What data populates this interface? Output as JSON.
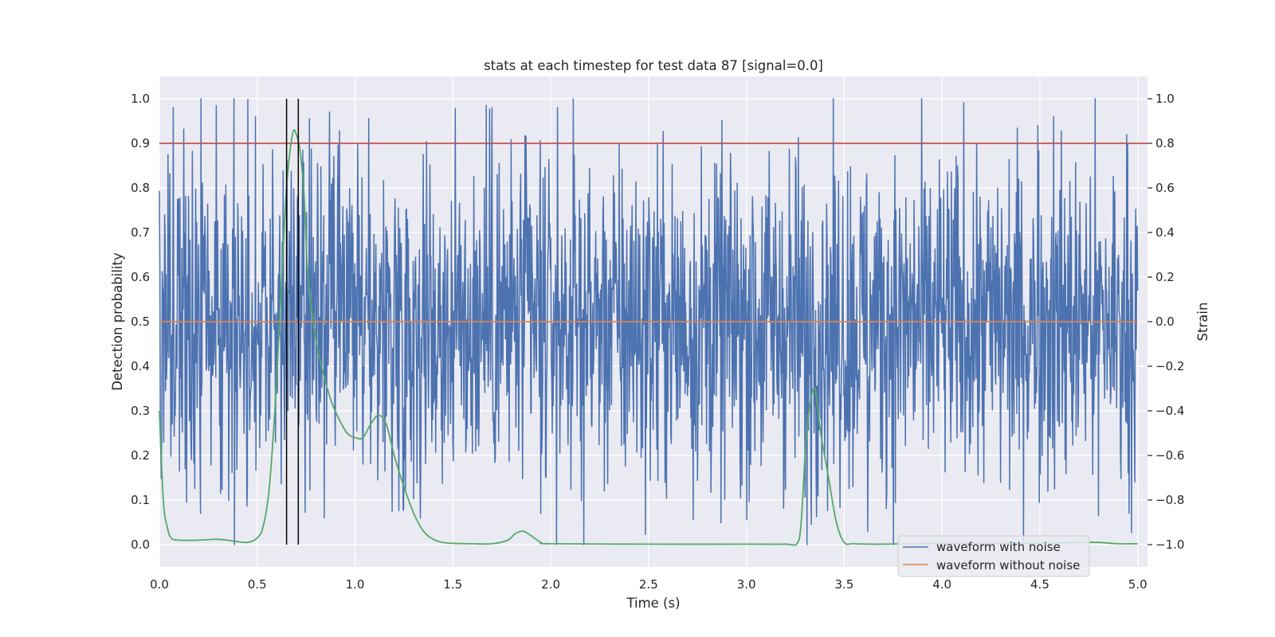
{
  "chart_data": {
    "type": "line",
    "title": "stats at each timestep for test data 87 [signal=0.0]",
    "xlabel": "Time (s)",
    "ylabel_left": "Detection probability",
    "ylabel_right": "Strain",
    "xlim": [
      0.0,
      5.05
    ],
    "ylim_left": [
      -0.05,
      1.05
    ],
    "ylim_right": [
      -1.1,
      1.1
    ],
    "x_ticks": [
      "0.0",
      "0.5",
      "1.0",
      "1.5",
      "2.0",
      "2.5",
      "3.0",
      "3.5",
      "4.0",
      "4.5",
      "5.0"
    ],
    "y_left_ticks": [
      "0.0",
      "0.1",
      "0.2",
      "0.3",
      "0.4",
      "0.5",
      "0.6",
      "0.7",
      "0.8",
      "0.9",
      "1.0"
    ],
    "y_right_ticks": [
      "−1.0",
      "−0.8",
      "−0.6",
      "−0.4",
      "−0.2",
      "0.0",
      "0.2",
      "0.4",
      "0.6",
      "0.8",
      "1.0"
    ],
    "grid": true,
    "legend_position": "lower-right",
    "threshold": {
      "axis": "left",
      "y": 0.9,
      "color": "#c44e52"
    },
    "event_markers": {
      "axis": "left",
      "x": [
        0.65,
        0.71
      ],
      "y_range": [
        0.0,
        1.0
      ],
      "color": "#000000"
    },
    "series": [
      {
        "name": "waveform with noise",
        "axis": "right",
        "color": "#4c72b0",
        "kind": "noise",
        "t_range": [
          0.0,
          5.0
        ],
        "samples": 2048,
        "std": 0.38,
        "clip": [
          -1.0,
          1.0
        ],
        "peaks": [
          [
            0.07,
            0.96
          ],
          [
            0.29,
            0.97
          ],
          [
            0.38,
            1.0
          ],
          [
            0.49,
            0.92
          ],
          [
            0.87,
            0.94
          ],
          [
            1.67,
            0.97
          ],
          [
            1.7,
            0.96
          ],
          [
            1.95,
            -0.86
          ],
          [
            3.31,
            -1.0
          ],
          [
            3.62,
            -0.94
          ],
          [
            4.49,
            0.88
          ],
          [
            4.57,
            0.92
          ],
          [
            4.8,
            -0.87
          ]
        ]
      },
      {
        "name": "waveform without noise",
        "axis": "right",
        "color": "#dd8452",
        "x": [
          0.0,
          5.0
        ],
        "y": [
          0.0,
          0.0
        ]
      },
      {
        "axis": "left",
        "color": "#55a868",
        "x": [
          0.0,
          0.02,
          0.04,
          0.06,
          0.1,
          0.2,
          0.3,
          0.38,
          0.45,
          0.5,
          0.53,
          0.56,
          0.59,
          0.62,
          0.65,
          0.68,
          0.7,
          0.72,
          0.74,
          0.76,
          0.8,
          0.84,
          0.88,
          0.92,
          0.96,
          1.0,
          1.04,
          1.08,
          1.12,
          1.16,
          1.2,
          1.25,
          1.3,
          1.35,
          1.4,
          1.45,
          1.5,
          1.6,
          1.7,
          1.78,
          1.82,
          1.86,
          1.9,
          1.95,
          2.0,
          2.5,
          3.0,
          3.2,
          3.26,
          3.28,
          3.3,
          3.32,
          3.35,
          3.38,
          3.42,
          3.46,
          3.5,
          3.55,
          3.7,
          4.0,
          4.3,
          4.6,
          4.7,
          4.8,
          4.9,
          5.0
        ],
        "y": [
          0.3,
          0.1,
          0.04,
          0.015,
          0.01,
          0.01,
          0.012,
          0.008,
          0.005,
          0.015,
          0.04,
          0.12,
          0.3,
          0.55,
          0.8,
          0.92,
          0.92,
          0.88,
          0.78,
          0.6,
          0.46,
          0.38,
          0.32,
          0.28,
          0.25,
          0.24,
          0.24,
          0.27,
          0.29,
          0.27,
          0.2,
          0.13,
          0.07,
          0.03,
          0.012,
          0.005,
          0.003,
          0.002,
          0.002,
          0.01,
          0.025,
          0.03,
          0.02,
          0.005,
          0.002,
          0.001,
          0.001,
          0.001,
          0.003,
          0.05,
          0.2,
          0.3,
          0.35,
          0.25,
          0.15,
          0.05,
          0.005,
          0.002,
          0.001,
          0.003,
          0.003,
          0.004,
          0.005,
          0.005,
          0.002,
          0.002
        ]
      }
    ]
  }
}
